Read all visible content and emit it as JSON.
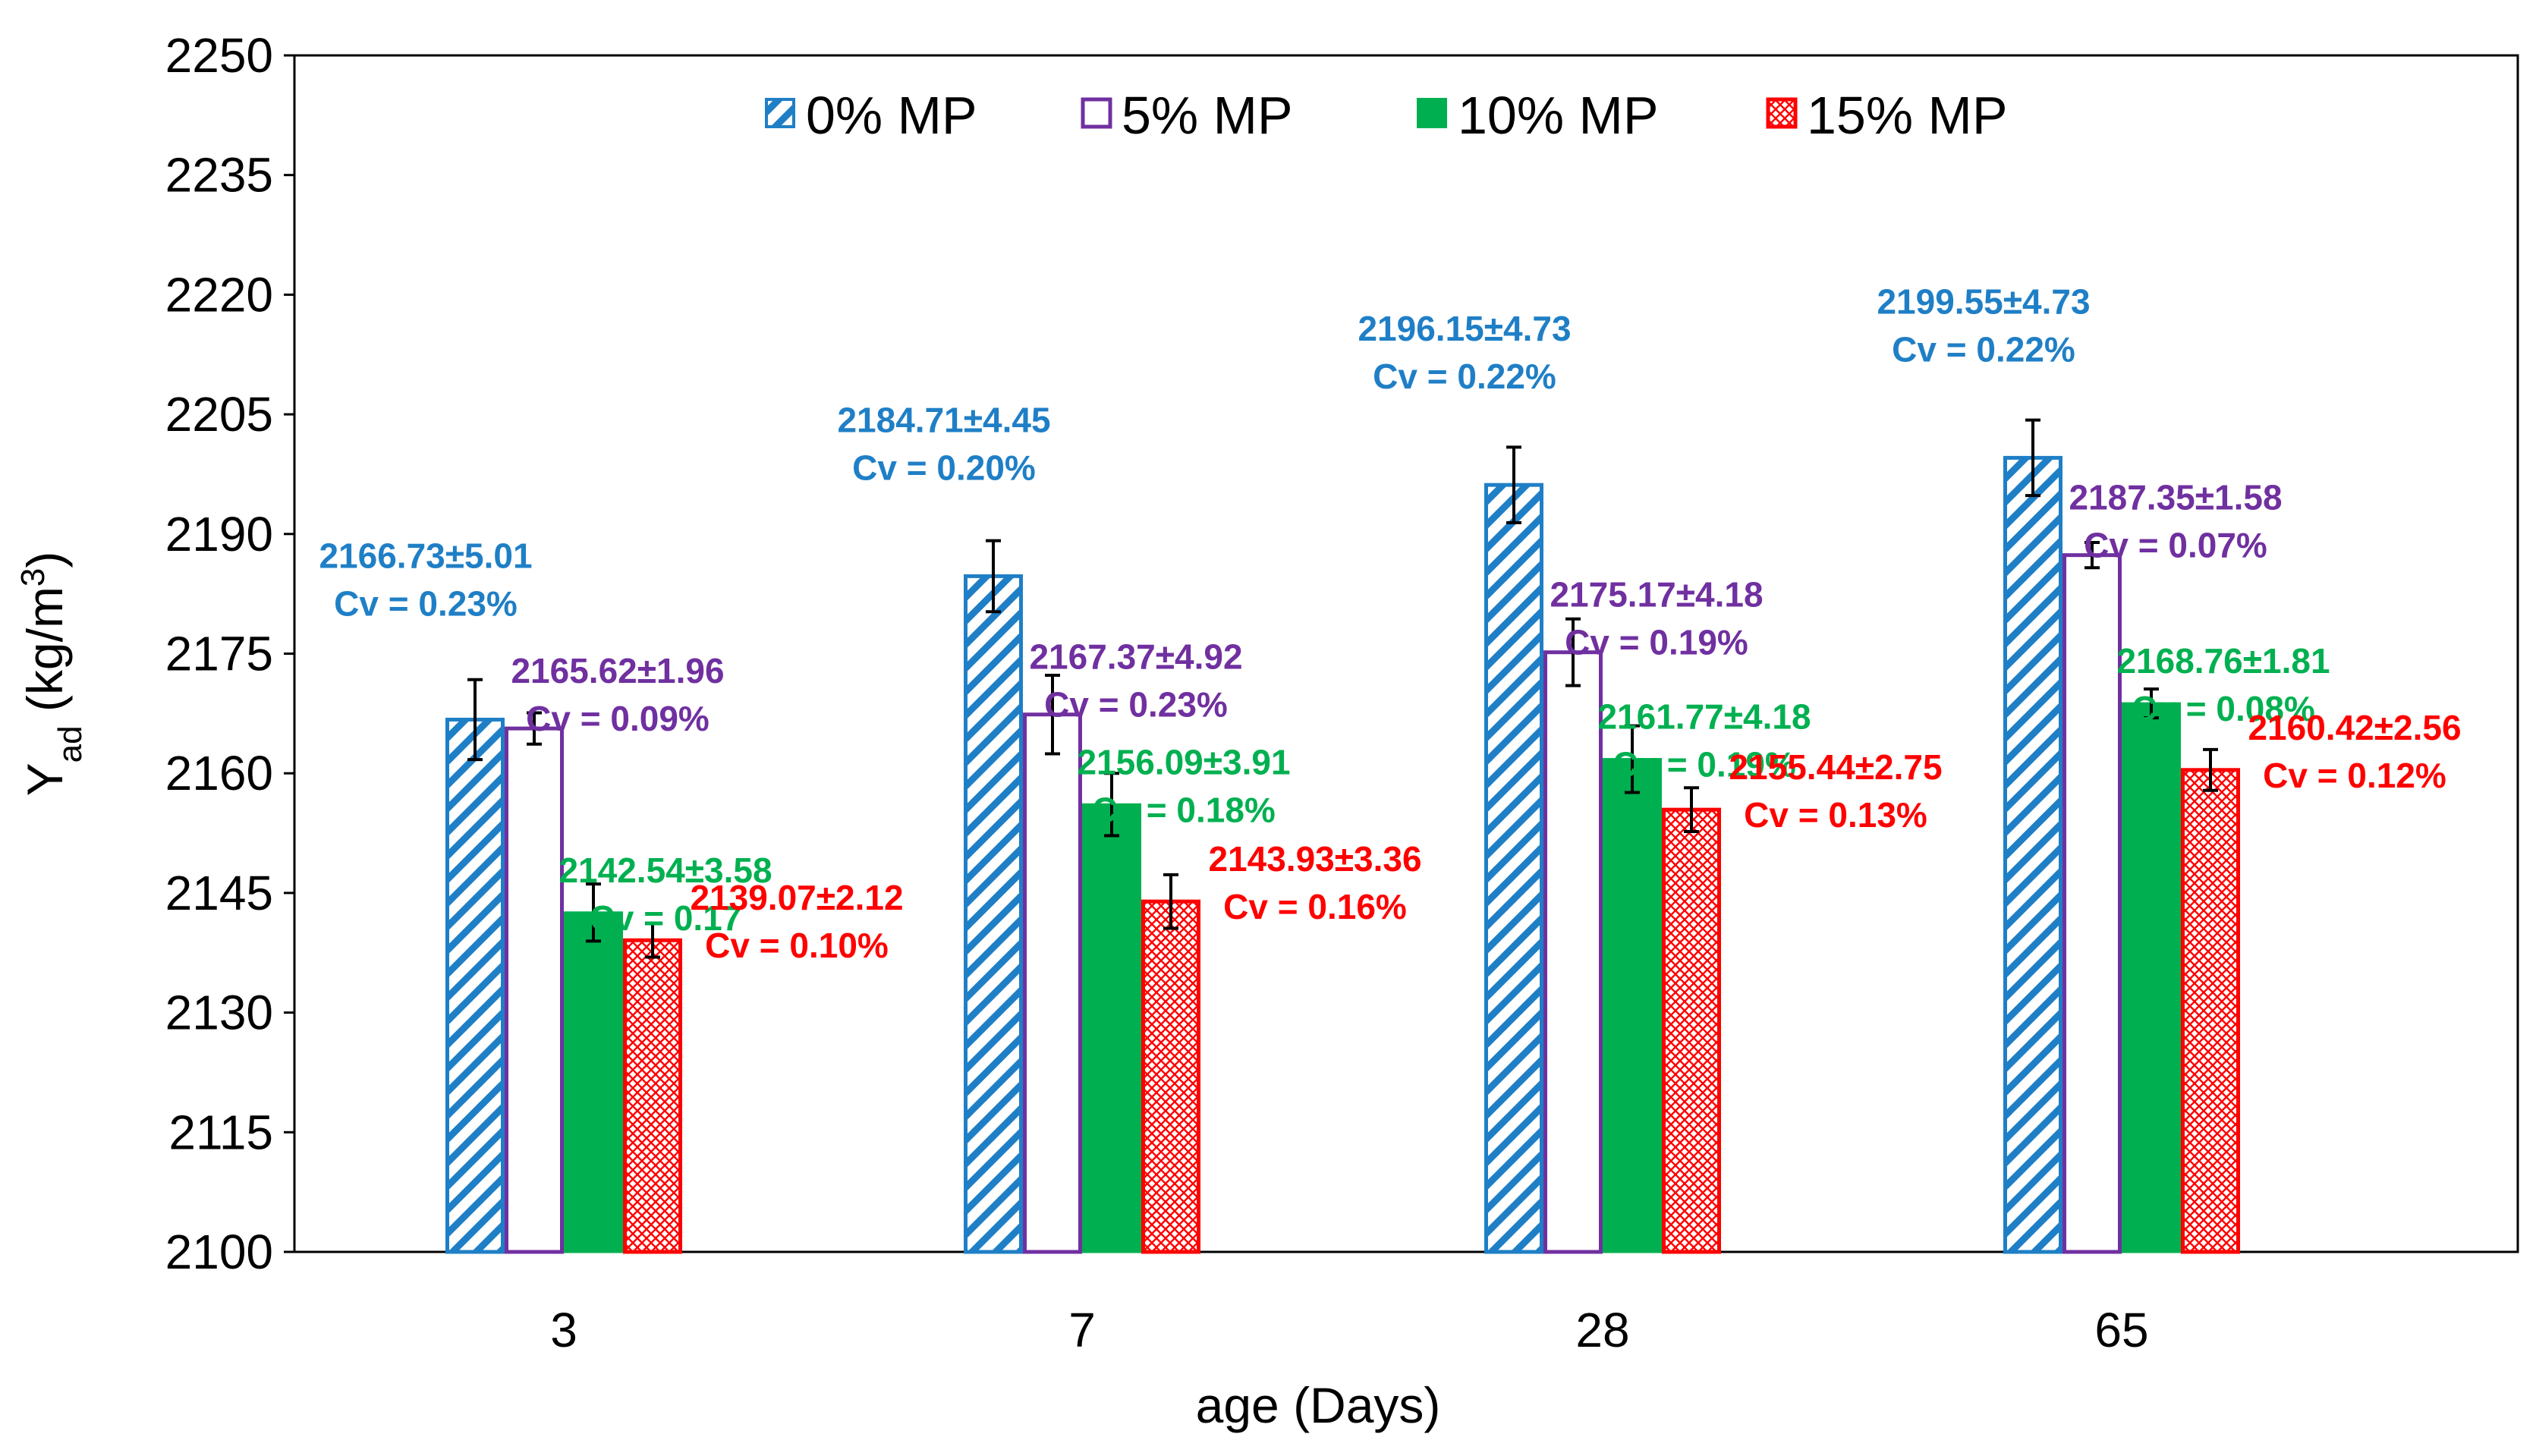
{
  "chart_data": {
    "type": "bar",
    "title": "",
    "xlabel": "age (Days)",
    "ylabel": {
      "main": "Y",
      "sub": "ad",
      "units": " (kg/m",
      "sup": "3",
      "close": ")"
    },
    "ylim": [
      2100,
      2250
    ],
    "yticks": [
      2100,
      2115,
      2130,
      2145,
      2160,
      2175,
      2190,
      2205,
      2220,
      2235,
      2250
    ],
    "grid": false,
    "legend_position": "top",
    "categories": [
      "3",
      "7",
      "28",
      "65"
    ],
    "series": [
      {
        "name": "0% MP",
        "color": "#1f7fc6",
        "pattern": "diagonal-hatch",
        "values": [
          2166.73,
          2184.71,
          2196.15,
          2199.55
        ],
        "errors": [
          5.01,
          4.45,
          4.73,
          4.73
        ],
        "labels": [
          "2166.73±5.01",
          "2184.71±4.45",
          "2196.15±4.73",
          "2199.55±4.73"
        ],
        "cv_labels": [
          "Cv = 0.23%",
          "Cv = 0.20%",
          "Cv = 0.22%",
          "Cv = 0.22%"
        ]
      },
      {
        "name": "5% MP",
        "color": "#7030a0",
        "pattern": "hollow",
        "values": [
          2165.62,
          2167.37,
          2175.17,
          2187.35
        ],
        "errors": [
          1.96,
          4.92,
          4.18,
          1.58
        ],
        "labels": [
          "2165.62±1.96",
          "2167.37±4.92",
          "2175.17±4.18",
          "2187.35±1.58"
        ],
        "cv_labels": [
          "Cv = 0.09%",
          "Cv = 0.23%",
          "Cv = 0.19%",
          "Cv = 0.07%"
        ]
      },
      {
        "name": "10% MP",
        "color": "#00b050",
        "pattern": "solid",
        "values": [
          2142.54,
          2156.09,
          2161.77,
          2168.76
        ],
        "errors": [
          3.58,
          3.91,
          4.18,
          1.81
        ],
        "labels": [
          "2142.54±3.58",
          "2156.09±3.91",
          "2161.77±4.18",
          "2168.76±1.81"
        ],
        "cv_labels": [
          "Cv = 0.17",
          "Cv = 0.18%",
          "Cv = 0.19%",
          "Cv = 0.08%"
        ]
      },
      {
        "name": "15% MP",
        "color": "#ff0000",
        "pattern": "crosshatch",
        "values": [
          2139.07,
          2143.93,
          2155.44,
          2160.42
        ],
        "errors": [
          2.12,
          3.36,
          2.75,
          2.56
        ],
        "labels": [
          "2139.07±2.12",
          "2143.93±3.36",
          "2155.44±2.75",
          "2160.42±2.56"
        ],
        "cv_labels": [
          "Cv = 0.10%",
          "Cv = 0.16%",
          "Cv = 0.13%",
          "Cv = 0.12%"
        ]
      }
    ]
  }
}
